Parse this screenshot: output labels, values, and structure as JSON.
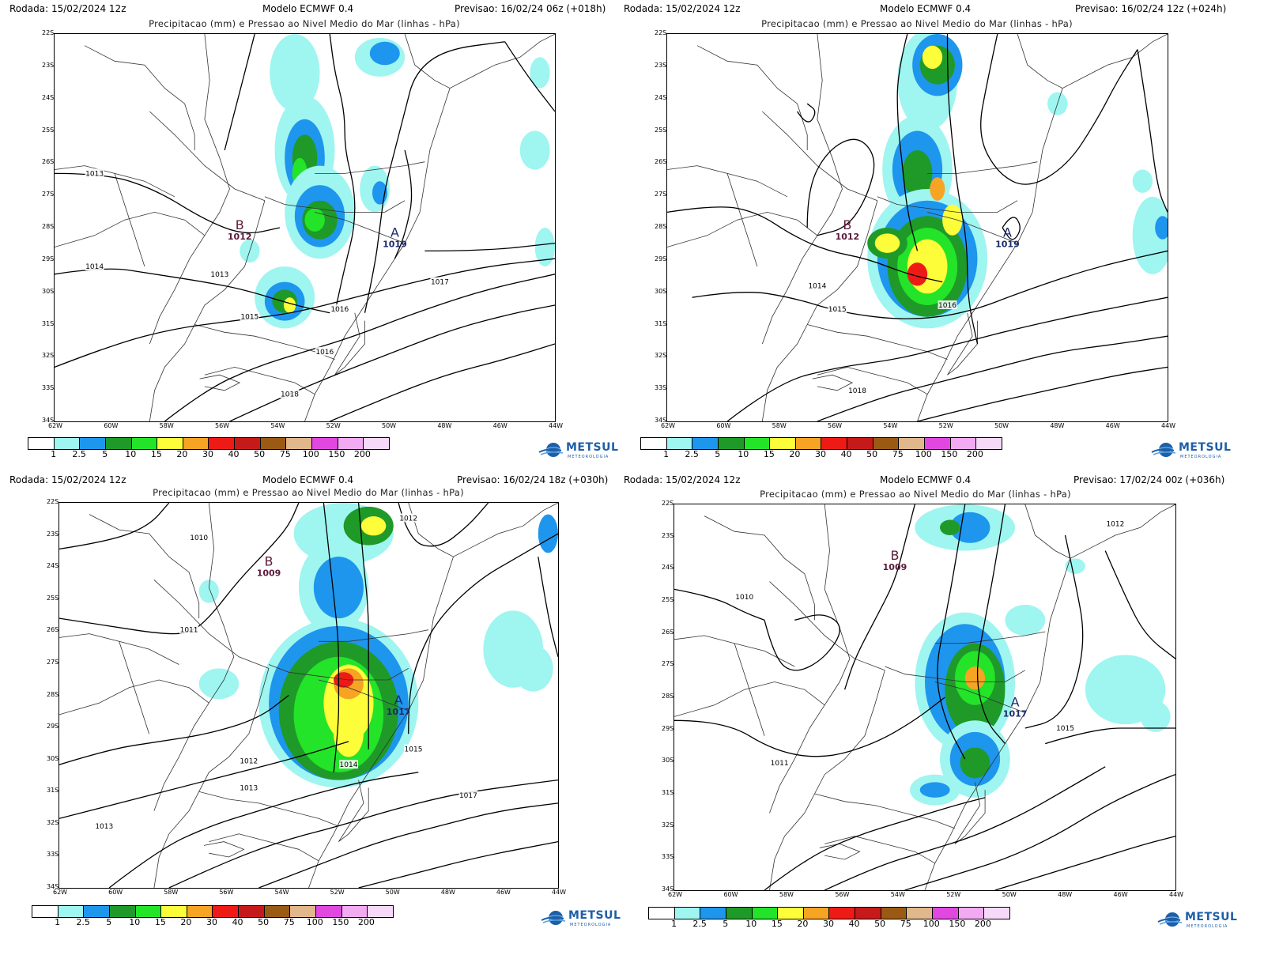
{
  "common": {
    "subtitle": "Precipitacao (mm) e Pressao ao Nivel Medio do Mar (linhas - hPa)",
    "model": "Modelo ECMWF 0.4",
    "latitudes": [
      "22S",
      "23S",
      "24S",
      "25S",
      "26S",
      "27S",
      "28S",
      "29S",
      "30S",
      "31S",
      "32S",
      "33S",
      "34S"
    ],
    "longitudes": [
      "62W",
      "60W",
      "58W",
      "56W",
      "54W",
      "52W",
      "50W",
      "48W",
      "46W",
      "44W"
    ],
    "legend_values": [
      "1",
      "2.5",
      "5",
      "10",
      "15",
      "20",
      "30",
      "40",
      "50",
      "75",
      "100",
      "150",
      "200"
    ],
    "legend_colors": [
      "#ffffff",
      "#9ff5f0",
      "#1e96ee",
      "#1f9a28",
      "#23e428",
      "#fefd3a",
      "#f7a323",
      "#ee1a16",
      "#c61a1a",
      "#9b5a14",
      "#e1b78c",
      "#e048e0",
      "#f2aaf2",
      "#f6d8f8"
    ],
    "logo_text": "METSUL",
    "logo_small": "METEOROLOGIA",
    "logo_icon": "globe-icon"
  },
  "panels": [
    {
      "rodada": "Rodada: 15/02/2024 12z",
      "previsao": "Previsao: 16/02/24 06z (+018h)",
      "low": {
        "letter": "B",
        "value": "1012"
      },
      "high": {
        "letter": "A",
        "value": "1019"
      },
      "isobar_labels": [
        "1013",
        "1014",
        "1013",
        "1015",
        "1016",
        "1017",
        "1016",
        "1018"
      ]
    },
    {
      "rodada": "Rodada: 15/02/2024 12z",
      "previsao": "Previsao: 16/02/24 12z (+024h)",
      "low": {
        "letter": "B",
        "value": "1012"
      },
      "high": {
        "letter": "A",
        "value": "1019"
      },
      "isobar_labels": [
        "1014",
        "1015",
        "1016",
        "1018"
      ]
    },
    {
      "rodada": "Rodada: 15/02/2024 12z",
      "previsao": "Previsao: 16/02/24 18z (+030h)",
      "low": {
        "letter": "B",
        "value": "1009"
      },
      "high": {
        "letter": "A",
        "value": "1017"
      },
      "isobar_labels": [
        "1010",
        "1011",
        "1012",
        "1013",
        "1013",
        "1014",
        "1015",
        "1017",
        "1012"
      ]
    },
    {
      "rodada": "Rodada: 15/02/2024 12z",
      "previsao": "Previsao: 17/02/24 00z (+036h)",
      "low": {
        "letter": "B",
        "value": "1009"
      },
      "high": {
        "letter": "A",
        "value": "1017"
      },
      "isobar_labels": [
        "1010",
        "1011",
        "1015",
        "1012"
      ]
    }
  ]
}
